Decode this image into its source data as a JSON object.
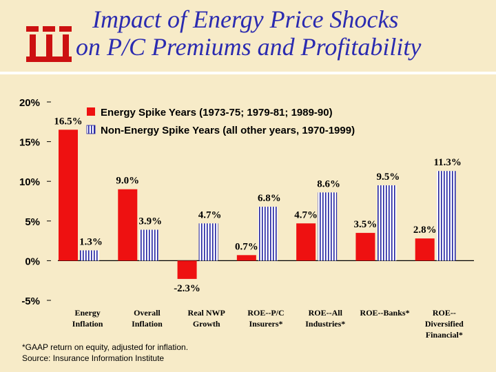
{
  "slide": {
    "title_line1": "Impact of Energy Price Shocks",
    "title_line2": "on P/C Premiums and Profitability",
    "footnote_line1": "*GAAP return on equity, adjusted for inflation.",
    "footnote_line2": "Source: Insurance Information Institute",
    "logo_icon": "iii-logo-icon"
  },
  "colors": {
    "energy": "#ee1111",
    "non_energy_stripe": "#2020a0",
    "title": "#2b2bb0",
    "background": "#f7ebc8"
  },
  "chart_data": {
    "type": "bar",
    "title": "",
    "xlabel": "",
    "ylabel": "",
    "ylim": [
      -5,
      20
    ],
    "yticks": [
      20,
      15,
      10,
      5,
      0,
      -5
    ],
    "ytick_labels": [
      "20%",
      "15%",
      "10%",
      "5%",
      "0%",
      "-5%"
    ],
    "legend_position": "top",
    "categories": [
      [
        "Energy",
        "Inflation"
      ],
      [
        "Overall",
        "Inflation"
      ],
      [
        "Real NWP",
        "Growth"
      ],
      [
        "ROE--P/C",
        "Insurers*"
      ],
      [
        "ROE--All",
        "Industries*"
      ],
      [
        "ROE--Banks*"
      ],
      [
        "ROE--",
        "Diversified",
        "Financial*"
      ]
    ],
    "series": [
      {
        "name": "Energy Spike Years (1973-75; 1979-81; 1989-90)",
        "values": [
          16.5,
          9.0,
          -2.3,
          0.7,
          4.7,
          3.5,
          2.8
        ],
        "labels": [
          "16.5%",
          "9.0%",
          "-2.3%",
          "0.7%",
          "4.7%",
          "3.5%",
          "2.8%"
        ]
      },
      {
        "name": "Non-Energy Spike Years (all other years, 1970-1999)",
        "values": [
          1.3,
          3.9,
          4.7,
          6.8,
          8.6,
          9.5,
          11.3
        ],
        "labels": [
          "1.3%",
          "3.9%",
          "4.7%",
          "6.8%",
          "8.6%",
          "9.5%",
          "11.3%"
        ]
      }
    ]
  }
}
